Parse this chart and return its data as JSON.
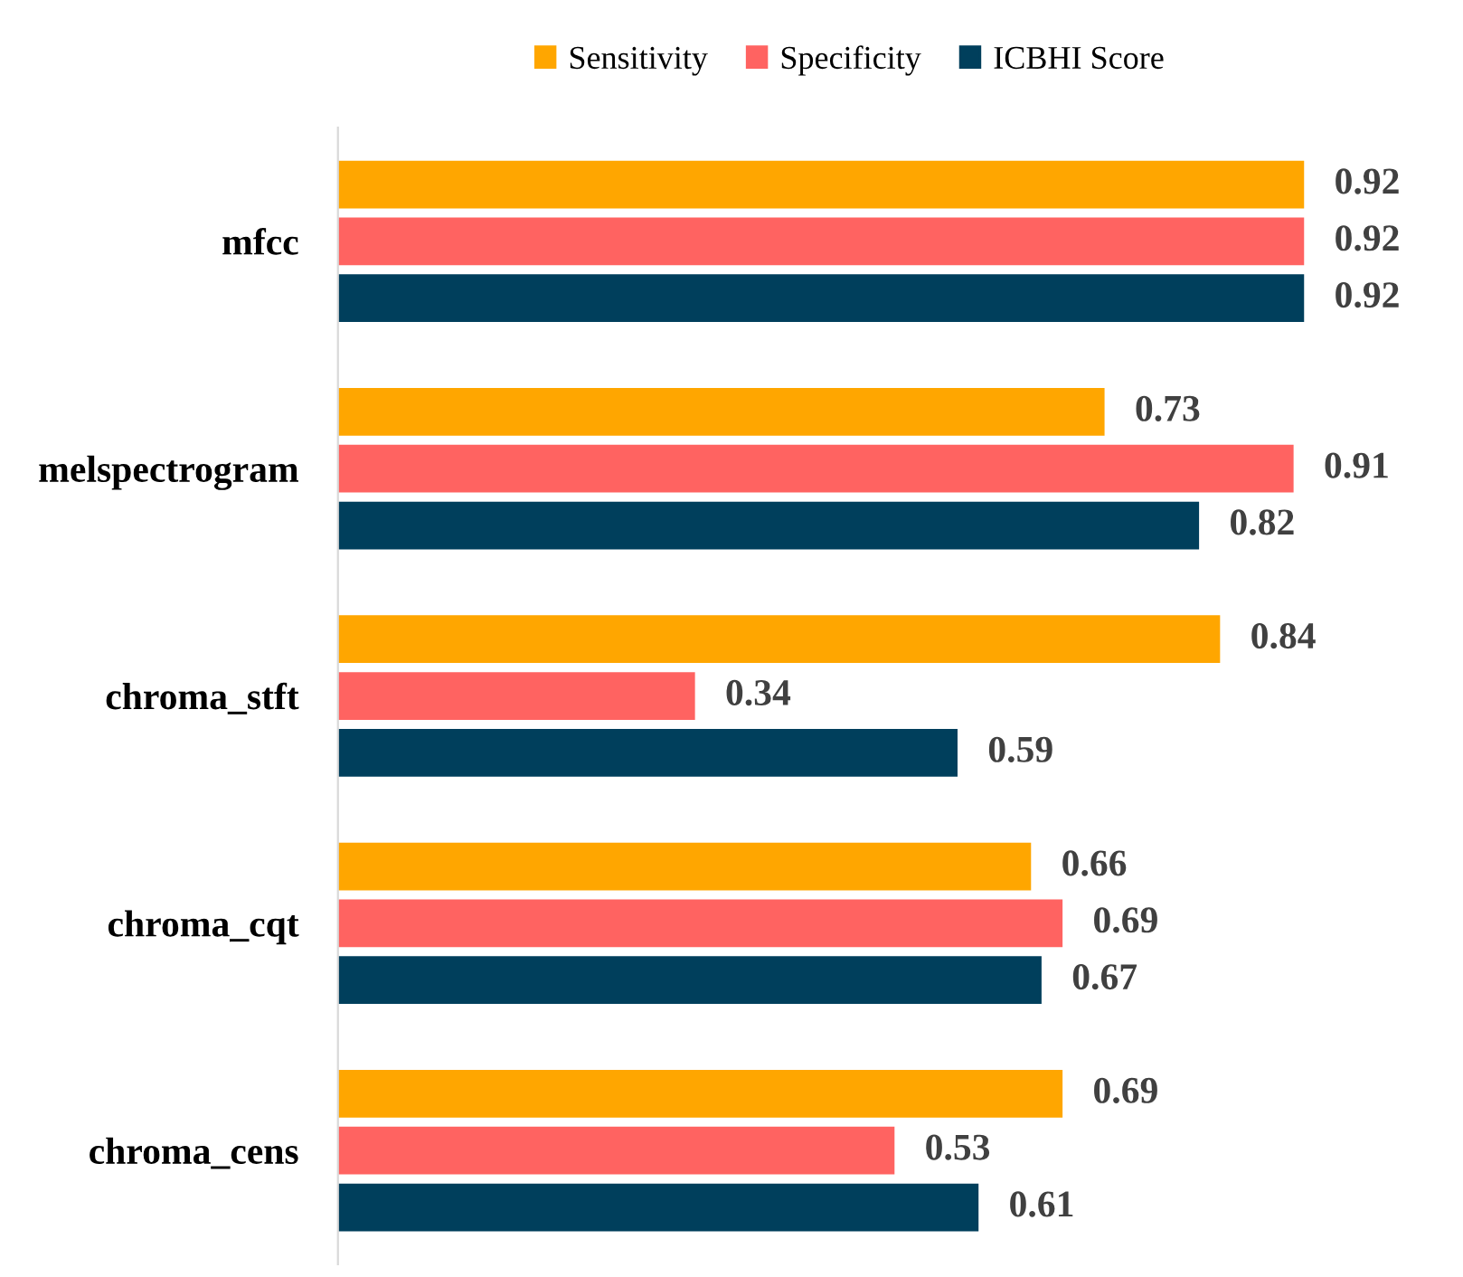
{
  "chart_data": {
    "type": "bar",
    "orientation": "horizontal",
    "categories": [
      "mfcc",
      "melspectrogram",
      "chroma_stft",
      "chroma_cqt",
      "chroma_cens"
    ],
    "series": [
      {
        "name": "Sensitivity",
        "color": "#ffa600",
        "values": [
          0.92,
          0.73,
          0.84,
          0.66,
          0.69
        ]
      },
      {
        "name": "Specificity",
        "color": "#ff6361",
        "values": [
          0.92,
          0.91,
          0.34,
          0.69,
          0.53
        ]
      },
      {
        "name": "ICBHI Score",
        "color": "#003f5c",
        "values": [
          0.92,
          0.82,
          0.59,
          0.67,
          0.61
        ]
      }
    ],
    "data_labels": true,
    "legend": "top",
    "grid": false,
    "tick_labels": "y"
  }
}
